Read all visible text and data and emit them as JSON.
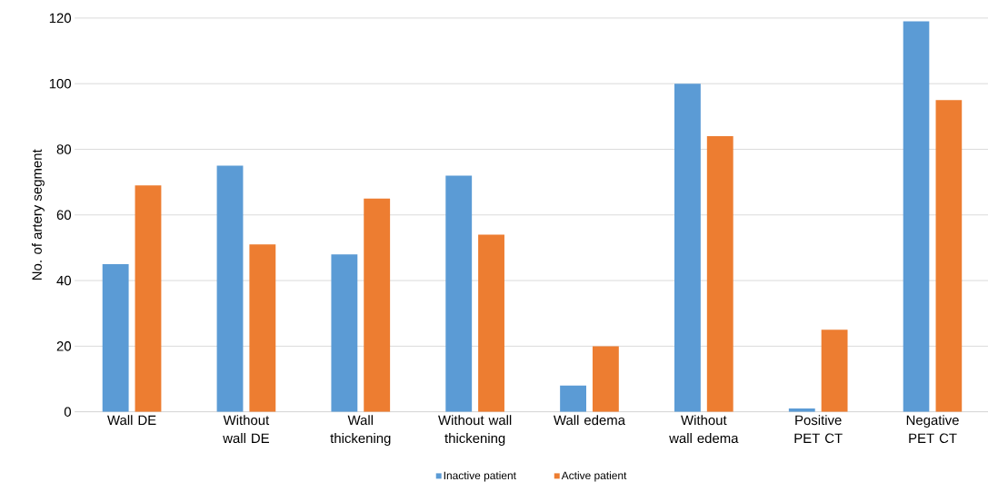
{
  "chart_data": {
    "type": "bar",
    "ylabel": "No. of artery segment",
    "categories": [
      "Wall DE",
      "Without wall DE",
      "Wall thickening",
      "Without wall thickening",
      "Wall edema",
      "Without wall edema",
      "Positive PET CT",
      "Negative PET CT"
    ],
    "series": [
      {
        "name": "Inactive patient",
        "color": "#5b9bd5",
        "values": [
          45,
          75,
          48,
          72,
          8,
          100,
          1,
          119
        ]
      },
      {
        "name": "Active patient",
        "color": "#ed7d31",
        "values": [
          69,
          51,
          65,
          54,
          20,
          84,
          25,
          95
        ]
      }
    ],
    "ylim": [
      0,
      120
    ],
    "yticks": [
      0,
      20,
      40,
      60,
      80,
      100,
      120
    ],
    "grid": "y",
    "legend": "bottom"
  }
}
